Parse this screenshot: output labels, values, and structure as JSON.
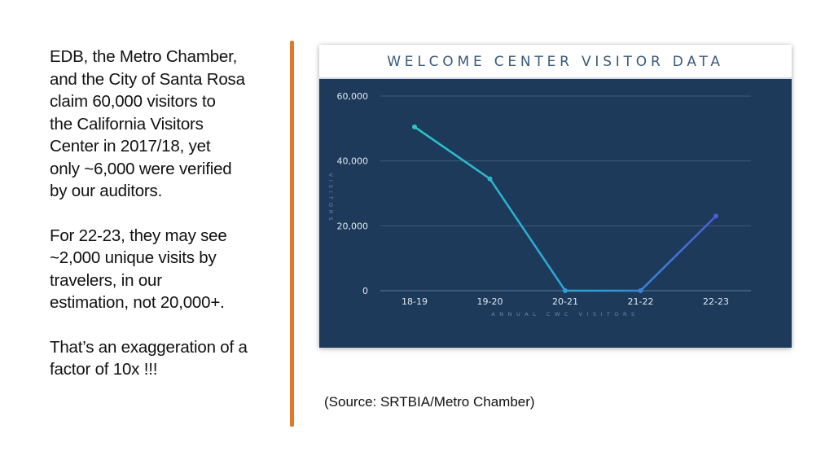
{
  "left_text": {
    "paragraph1": "EDB, the Metro Chamber,\nand the City of Santa Rosa\nclaim 60,000 visitors to\nthe California Visitors\nCenter in 2017/18, yet\nonly ~6,000 were verified\nby our auditors.",
    "paragraph2": " For 22-23, they may see\n~2,000 unique visits by\ntravelers, in our\nestimation, not 20,000+.",
    "paragraph3": "That’s an exaggeration of a\nfactor of 10x !!!"
  },
  "source": "(Source: SRTBIA/Metro Chamber)",
  "colors": {
    "divider": "#e0782a",
    "chart_background": "#1e3a5a",
    "line_start": "#2bc5c8",
    "line_end": "#4b5fd6"
  },
  "chart_data": {
    "type": "line",
    "title": "WELCOME CENTER VISITOR DATA",
    "xlabel": "ANNUAL CWC VISITORS",
    "ylabel": "VISITORS",
    "categories": [
      "18-19",
      "19-20",
      "20-21",
      "21-22",
      "22-23"
    ],
    "series": [
      {
        "values": [
          50500,
          34500,
          0,
          0,
          23000
        ]
      }
    ],
    "ylim": [
      0,
      60000
    ],
    "yticks": [
      0,
      20000,
      40000,
      60000
    ],
    "ytick_labels": [
      "0",
      "20,000",
      "40,000",
      "60,000"
    ],
    "grid": true
  }
}
